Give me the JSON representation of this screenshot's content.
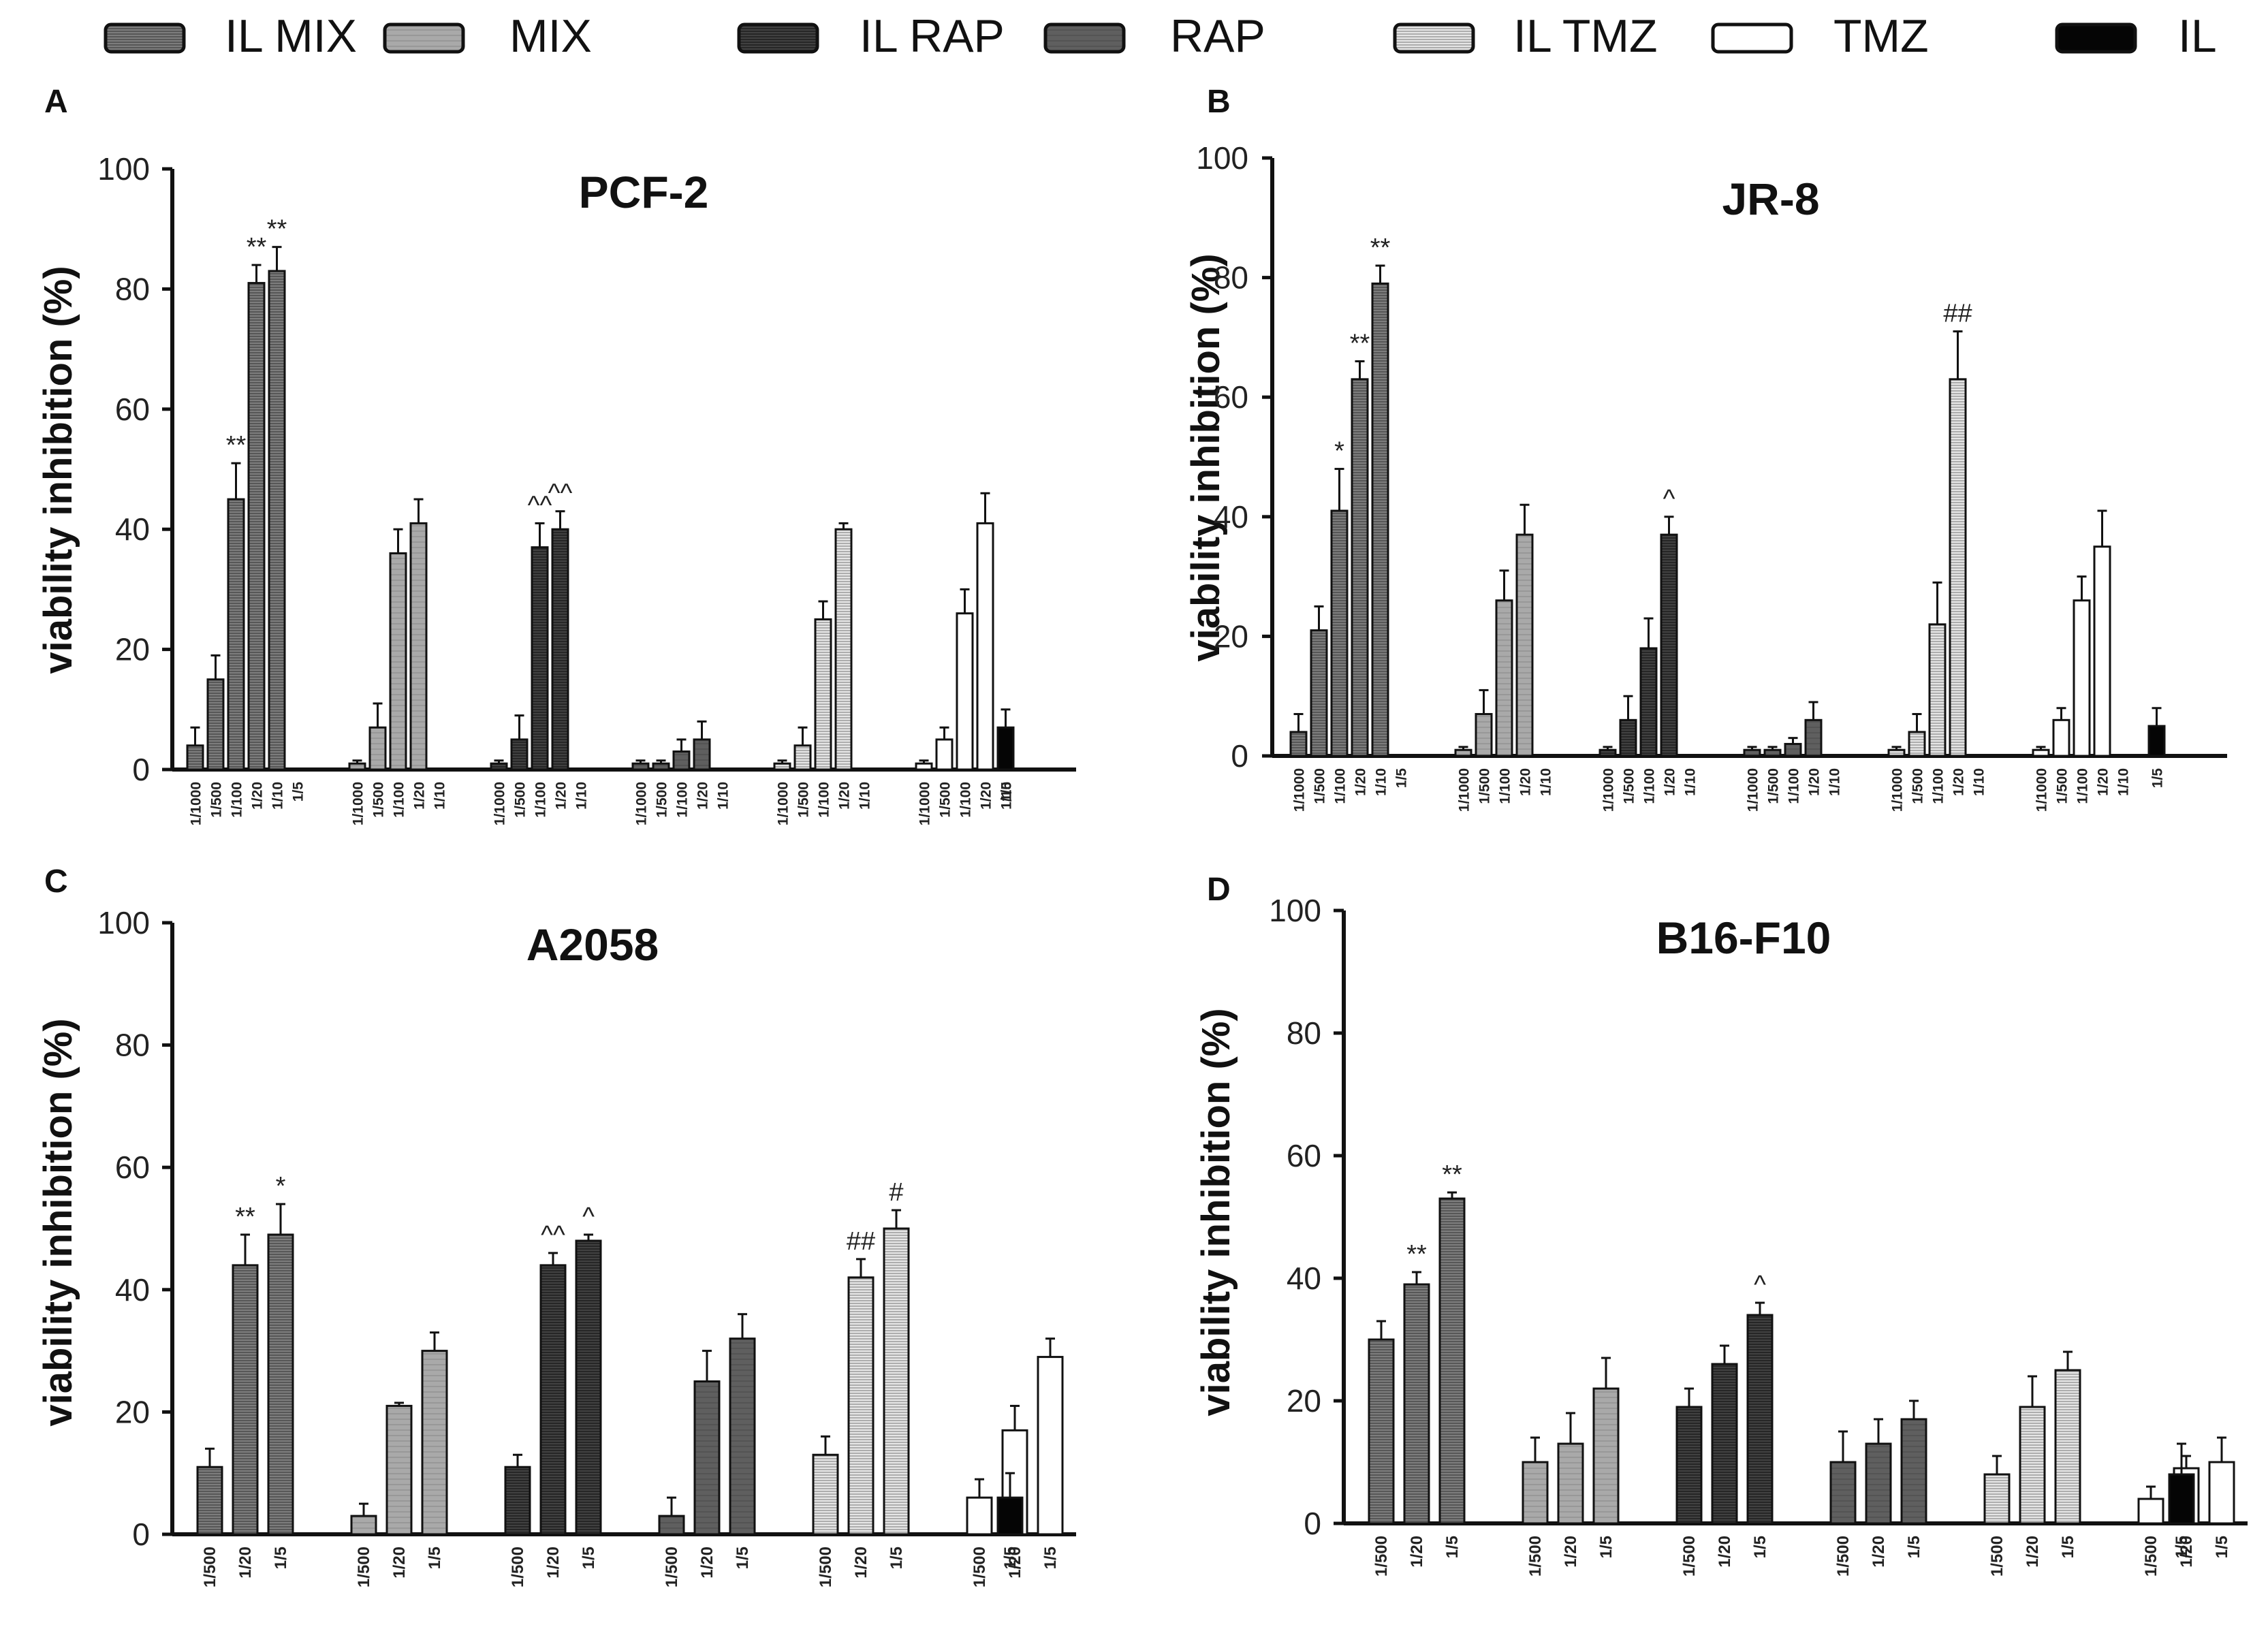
{
  "legend": [
    {
      "id": "il_mix",
      "label": "IL MIX",
      "pattern": "pat-il-mix"
    },
    {
      "id": "mix",
      "label": "MIX",
      "pattern": "pat-mix"
    },
    {
      "id": "il_rap",
      "label": "IL RAP",
      "pattern": "pat-il-rap"
    },
    {
      "id": "rap",
      "label": "RAP",
      "pattern": "pat-rap"
    },
    {
      "id": "il_tmz",
      "label": "IL TMZ",
      "pattern": "pat-il-tmz"
    },
    {
      "id": "tmz",
      "label": "TMZ",
      "pattern": "pat-tmz"
    },
    {
      "id": "il",
      "label": "IL",
      "pattern": "pat-il"
    }
  ],
  "colors": {
    "il_mix": "#7a7a7a",
    "mix": "#a8a8a8",
    "il_rap": "#3f3f3f",
    "rap": "#5e5e5e",
    "il_tmz": "#dcdcdc",
    "tmz": "#ffffff",
    "il": "#000000",
    "axis": "#111111"
  },
  "chart_data": [
    {
      "panel": "A",
      "type": "bar",
      "title": "PCF-2",
      "ylabel": "viability inhibition (%)",
      "ylim": [
        0,
        100
      ],
      "yticks": [
        0,
        20,
        40,
        60,
        80,
        100
      ],
      "groups": [
        {
          "series": "il_mix",
          "categories": [
            "1/1000",
            "1/500",
            "1/100",
            "1/20",
            "1/10",
            "1/5"
          ],
          "values": [
            4,
            15,
            45,
            81,
            83,
            null
          ],
          "errors": [
            3,
            4,
            6,
            3,
            4,
            null
          ],
          "annotations": [
            "",
            "",
            "**",
            "**",
            "**",
            ""
          ]
        },
        {
          "series": "mix",
          "categories": [
            "1/1000",
            "1/500",
            "1/100",
            "1/20",
            "1/10"
          ],
          "values": [
            1,
            7,
            36,
            41,
            null
          ],
          "errors": [
            0.5,
            4,
            4,
            4,
            null
          ],
          "annotations": [
            "",
            "",
            "",
            "",
            ""
          ]
        },
        {
          "series": "il_rap",
          "categories": [
            "1/1000",
            "1/500",
            "1/100",
            "1/20",
            "1/10"
          ],
          "values": [
            1,
            5,
            37,
            40,
            null
          ],
          "errors": [
            0.5,
            4,
            4,
            3,
            null
          ],
          "annotations": [
            "",
            "",
            "^^",
            "^^",
            ""
          ]
        },
        {
          "series": "rap",
          "categories": [
            "1/1000",
            "1/500",
            "1/100",
            "1/20",
            "1/10"
          ],
          "values": [
            1,
            1,
            3,
            5,
            null
          ],
          "errors": [
            0.5,
            0.5,
            2,
            3,
            null
          ],
          "annotations": [
            "",
            "",
            "",
            "",
            ""
          ]
        },
        {
          "series": "il_tmz",
          "categories": [
            "1/1000",
            "1/500",
            "1/100",
            "1/20",
            "1/10"
          ],
          "values": [
            1,
            4,
            25,
            40,
            null
          ],
          "errors": [
            0.5,
            3,
            3,
            1,
            null
          ],
          "annotations": [
            "",
            "",
            "",
            "",
            ""
          ]
        },
        {
          "series": "tmz",
          "categories": [
            "1/1000",
            "1/500",
            "1/100",
            "1/20",
            "1/10"
          ],
          "values": [
            1,
            5,
            26,
            41,
            null
          ],
          "errors": [
            0.5,
            2,
            4,
            5,
            null
          ],
          "annotations": [
            "",
            "",
            "",
            "",
            ""
          ]
        },
        {
          "series": "il",
          "categories": [
            "1/5"
          ],
          "values": [
            7
          ],
          "errors": [
            3
          ],
          "annotations": [
            ""
          ]
        }
      ]
    },
    {
      "panel": "B",
      "type": "bar",
      "title": "JR-8",
      "ylabel": "viability inhibition (%)",
      "ylim": [
        0,
        100
      ],
      "yticks": [
        0,
        20,
        40,
        60,
        80,
        100
      ],
      "groups": [
        {
          "series": "il_mix",
          "categories": [
            "1/1000",
            "1/500",
            "1/100",
            "1/20",
            "1/10",
            "1/5"
          ],
          "values": [
            4,
            21,
            41,
            63,
            79,
            null
          ],
          "errors": [
            3,
            4,
            7,
            3,
            3,
            null
          ],
          "annotations": [
            "",
            "",
            "*",
            "**",
            "**",
            ""
          ]
        },
        {
          "series": "mix",
          "categories": [
            "1/1000",
            "1/500",
            "1/100",
            "1/20",
            "1/10"
          ],
          "values": [
            1,
            7,
            26,
            37,
            null
          ],
          "errors": [
            0.5,
            4,
            5,
            5,
            null
          ],
          "annotations": [
            "",
            "",
            "",
            "",
            ""
          ]
        },
        {
          "series": "il_rap",
          "categories": [
            "1/1000",
            "1/500",
            "1/100",
            "1/20",
            "1/10"
          ],
          "values": [
            1,
            6,
            18,
            37,
            null
          ],
          "errors": [
            0.5,
            4,
            5,
            3,
            null
          ],
          "annotations": [
            "",
            "",
            "",
            "^",
            ""
          ]
        },
        {
          "series": "rap",
          "categories": [
            "1/1000",
            "1/500",
            "1/100",
            "1/20",
            "1/10"
          ],
          "values": [
            1,
            1,
            2,
            6,
            null
          ],
          "errors": [
            0.5,
            0.5,
            1,
            3,
            null
          ],
          "annotations": [
            "",
            "",
            "",
            "",
            ""
          ]
        },
        {
          "series": "il_tmz",
          "categories": [
            "1/1000",
            "1/500",
            "1/100",
            "1/20",
            "1/10"
          ],
          "values": [
            1,
            4,
            22,
            63,
            null
          ],
          "errors": [
            0.5,
            3,
            7,
            8,
            null
          ],
          "annotations": [
            "",
            "",
            "",
            "##",
            ""
          ]
        },
        {
          "series": "tmz",
          "categories": [
            "1/1000",
            "1/500",
            "1/100",
            "1/20",
            "1/10"
          ],
          "values": [
            1,
            6,
            26,
            35,
            null
          ],
          "errors": [
            0.5,
            2,
            4,
            6,
            null
          ],
          "annotations": [
            "",
            "",
            "",
            "",
            ""
          ]
        },
        {
          "series": "il",
          "categories": [
            "1/5"
          ],
          "values": [
            5
          ],
          "errors": [
            3
          ],
          "annotations": [
            ""
          ]
        }
      ]
    },
    {
      "panel": "C",
      "type": "bar",
      "title": "A2058",
      "ylabel": "viability inhibition (%)",
      "ylim": [
        0,
        100
      ],
      "yticks": [
        0,
        20,
        40,
        60,
        80,
        100
      ],
      "groups": [
        {
          "series": "il_mix",
          "categories": [
            "1/500",
            "1/20",
            "1/5"
          ],
          "values": [
            11,
            44,
            49
          ],
          "errors": [
            3,
            5,
            5
          ],
          "annotations": [
            "",
            "**",
            "*"
          ]
        },
        {
          "series": "mix",
          "categories": [
            "1/500",
            "1/20",
            "1/5"
          ],
          "values": [
            3,
            21,
            30
          ],
          "errors": [
            2,
            0.5,
            3
          ],
          "annotations": [
            "",
            "",
            ""
          ]
        },
        {
          "series": "il_rap",
          "categories": [
            "1/500",
            "1/20",
            "1/5"
          ],
          "values": [
            11,
            44,
            48
          ],
          "errors": [
            2,
            2,
            1
          ],
          "annotations": [
            "",
            "^^",
            "^"
          ]
        },
        {
          "series": "rap",
          "categories": [
            "1/500",
            "1/20",
            "1/5"
          ],
          "values": [
            3,
            25,
            32
          ],
          "errors": [
            3,
            5,
            4
          ],
          "annotations": [
            "",
            "",
            ""
          ]
        },
        {
          "series": "il_tmz",
          "categories": [
            "1/500",
            "1/20",
            "1/5"
          ],
          "values": [
            13,
            42,
            50
          ],
          "errors": [
            3,
            3,
            3
          ],
          "annotations": [
            "",
            "##",
            "#"
          ]
        },
        {
          "series": "tmz",
          "categories": [
            "1/500",
            "1/20",
            "1/5"
          ],
          "values": [
            6,
            17,
            29
          ],
          "errors": [
            3,
            4,
            3
          ],
          "annotations": [
            "",
            "",
            ""
          ]
        },
        {
          "series": "il",
          "categories": [
            "1/5"
          ],
          "values": [
            6
          ],
          "errors": [
            4
          ],
          "annotations": [
            ""
          ]
        }
      ]
    },
    {
      "panel": "D",
      "type": "bar",
      "title": "B16-F10",
      "ylabel": "viability inhibition (%)",
      "ylim": [
        0,
        100
      ],
      "yticks": [
        0,
        20,
        40,
        60,
        80,
        100
      ],
      "groups": [
        {
          "series": "il_mix",
          "categories": [
            "1/500",
            "1/20",
            "1/5"
          ],
          "values": [
            30,
            39,
            53
          ],
          "errors": [
            3,
            2,
            1
          ],
          "annotations": [
            "",
            "**",
            "**"
          ]
        },
        {
          "series": "mix",
          "categories": [
            "1/500",
            "1/20",
            "1/5"
          ],
          "values": [
            10,
            13,
            22
          ],
          "errors": [
            4,
            5,
            5
          ],
          "annotations": [
            "",
            "",
            ""
          ]
        },
        {
          "series": "il_rap",
          "categories": [
            "1/500",
            "1/20",
            "1/5"
          ],
          "values": [
            19,
            26,
            34
          ],
          "errors": [
            3,
            3,
            2
          ],
          "annotations": [
            "",
            "",
            "^"
          ]
        },
        {
          "series": "rap",
          "categories": [
            "1/500",
            "1/20",
            "1/5"
          ],
          "values": [
            10,
            13,
            17
          ],
          "errors": [
            5,
            4,
            3
          ],
          "annotations": [
            "",
            "",
            ""
          ]
        },
        {
          "series": "il_tmz",
          "categories": [
            "1/500",
            "1/20",
            "1/5"
          ],
          "values": [
            8,
            19,
            25
          ],
          "errors": [
            3,
            5,
            3
          ],
          "annotations": [
            "",
            "",
            ""
          ]
        },
        {
          "series": "tmz",
          "categories": [
            "1/500",
            "1/20",
            "1/5"
          ],
          "values": [
            4,
            9,
            10
          ],
          "errors": [
            2,
            2,
            4
          ],
          "annotations": [
            "",
            "",
            ""
          ]
        },
        {
          "series": "il",
          "categories": [
            "1/5"
          ],
          "values": [
            8
          ],
          "errors": [
            5
          ],
          "annotations": [
            ""
          ]
        }
      ]
    }
  ]
}
